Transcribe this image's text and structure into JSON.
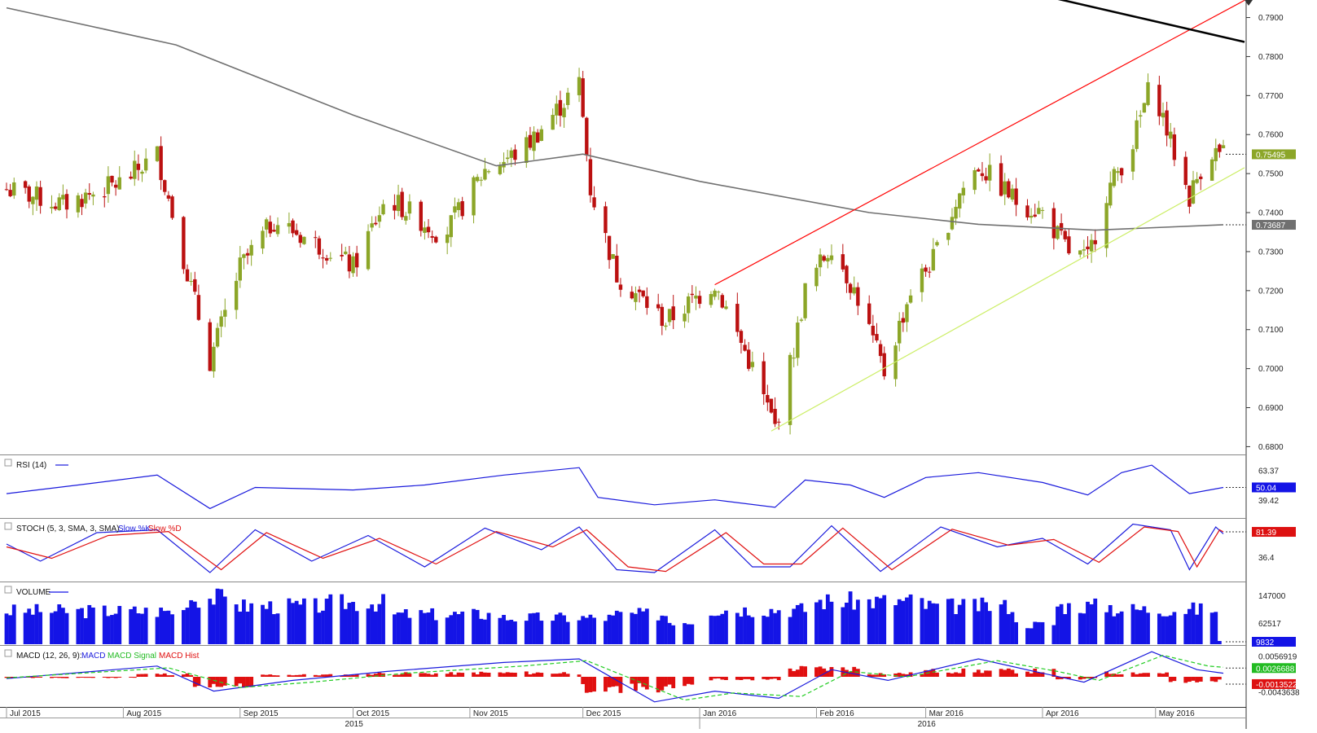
{
  "chart_data": {
    "type": "candlestick",
    "main": {
      "y_ticks": [
        "0.7900",
        "0.7800",
        "0.7700",
        "0.7600",
        "0.7500",
        "0.7400",
        "0.7300",
        "0.7200",
        "0.7100",
        "0.7000",
        "0.6900",
        "0.6800"
      ],
      "ylim": [
        0.678,
        0.7945
      ],
      "last_price_label": "0.75495",
      "last_price": 0.75495,
      "ma_value_label": "0.73687",
      "ma_value": 0.73687,
      "price_points": [
        {
          "date": "2015-07-01",
          "price": 0.746
        },
        {
          "date": "2015-07-16",
          "price": 0.742
        },
        {
          "date": "2015-08-01",
          "price": 0.748
        },
        {
          "date": "2015-08-10",
          "price": 0.755
        },
        {
          "date": "2015-08-24",
          "price": 0.702
        },
        {
          "date": "2015-09-01",
          "price": 0.726
        },
        {
          "date": "2015-09-10",
          "price": 0.738
        },
        {
          "date": "2015-09-25",
          "price": 0.73
        },
        {
          "date": "2015-10-01",
          "price": 0.726
        },
        {
          "date": "2015-10-10",
          "price": 0.744
        },
        {
          "date": "2015-10-25",
          "price": 0.734
        },
        {
          "date": "2015-11-05",
          "price": 0.751
        },
        {
          "date": "2015-11-15",
          "price": 0.756
        },
        {
          "date": "2015-11-30",
          "price": 0.773
        },
        {
          "date": "2015-12-03",
          "price": 0.746
        },
        {
          "date": "2015-12-10",
          "price": 0.724
        },
        {
          "date": "2015-12-23",
          "price": 0.712
        },
        {
          "date": "2016-01-05",
          "price": 0.722
        },
        {
          "date": "2016-01-15",
          "price": 0.7
        },
        {
          "date": "2016-01-21",
          "price": 0.685
        },
        {
          "date": "2016-01-26",
          "price": 0.705
        },
        {
          "date": "2016-01-29",
          "price": 0.72
        },
        {
          "date": "2016-02-05",
          "price": 0.732
        },
        {
          "date": "2016-02-12",
          "price": 0.718
        },
        {
          "date": "2016-02-19",
          "price": 0.699
        },
        {
          "date": "2016-02-26",
          "price": 0.72
        },
        {
          "date": "2016-03-03",
          "price": 0.728
        },
        {
          "date": "2016-03-10",
          "price": 0.745
        },
        {
          "date": "2016-03-15",
          "price": 0.752
        },
        {
          "date": "2016-03-25",
          "price": 0.743
        },
        {
          "date": "2016-04-01",
          "price": 0.74
        },
        {
          "date": "2016-04-08",
          "price": 0.73
        },
        {
          "date": "2016-04-13",
          "price": 0.728
        },
        {
          "date": "2016-04-18",
          "price": 0.745
        },
        {
          "date": "2016-04-25",
          "price": 0.758
        },
        {
          "date": "2016-04-30",
          "price": 0.774
        },
        {
          "date": "2016-05-05",
          "price": 0.758
        },
        {
          "date": "2016-05-10",
          "price": 0.744
        },
        {
          "date": "2016-05-15",
          "price": 0.756
        },
        {
          "date": "2016-05-19",
          "price": 0.7549
        }
      ],
      "moving_average": [
        {
          "date": "2015-07-01",
          "price": 0.7925
        },
        {
          "date": "2015-08-15",
          "price": 0.783
        },
        {
          "date": "2015-10-01",
          "price": 0.765
        },
        {
          "date": "2015-11-08",
          "price": 0.752
        },
        {
          "date": "2015-12-01",
          "price": 0.755
        },
        {
          "date": "2016-01-01",
          "price": 0.748
        },
        {
          "date": "2016-02-15",
          "price": 0.74
        },
        {
          "date": "2016-03-15",
          "price": 0.737
        },
        {
          "date": "2016-04-15",
          "price": 0.7355
        },
        {
          "date": "2016-05-19",
          "price": 0.7369
        }
      ],
      "trendlines": [
        {
          "color": "#ff0000",
          "from": {
            "date": "2016-01-05",
            "price": 0.7215
          },
          "to": {
            "date": "2016-05-19",
            "price": 0.7915
          }
        },
        {
          "color": "#ccee66",
          "from": {
            "date": "2016-01-20",
            "price": 0.684
          },
          "to": {
            "date": "2016-05-19",
            "price": 0.7485
          }
        },
        {
          "color": "#000000",
          "from": {
            "date": "2016-03-08",
            "price": 0.801
          },
          "to": {
            "date": "2016-05-19",
            "price": 0.785
          }
        }
      ]
    },
    "x_axis": {
      "months": [
        {
          "label": "Jul 2015",
          "date": "2015-07-01"
        },
        {
          "label": "Aug 2015",
          "date": "2015-08-01"
        },
        {
          "label": "Sep 2015",
          "date": "2015-09-01"
        },
        {
          "label": "Oct 2015",
          "date": "2015-10-01"
        },
        {
          "label": "Nov 2015",
          "date": "2015-11-01"
        },
        {
          "label": "Dec 2015",
          "date": "2015-12-01"
        },
        {
          "label": "Jan 2016",
          "date": "2016-01-01"
        },
        {
          "label": "Feb 2016",
          "date": "2016-02-01"
        },
        {
          "label": "Mar 2016",
          "date": "2016-03-01"
        },
        {
          "label": "Apr 2016",
          "date": "2016-04-01"
        },
        {
          "label": "May 2016",
          "date": "2016-05-01"
        }
      ],
      "years": [
        {
          "label": "2015",
          "date": "2015-10-01"
        },
        {
          "label": "2016",
          "date": "2016-03-01"
        }
      ]
    },
    "rsi": {
      "title": "RSI (14)",
      "ticks": [
        "63.37",
        "39.42"
      ],
      "tick_values": [
        63.37,
        39.42
      ],
      "last_label": "50.04",
      "range": [
        28,
        74
      ],
      "points": [
        {
          "date": "2015-07-01",
          "v": 45
        },
        {
          "date": "2015-07-20",
          "v": 52
        },
        {
          "date": "2015-08-10",
          "v": 60
        },
        {
          "date": "2015-08-24",
          "v": 33
        },
        {
          "date": "2015-09-05",
          "v": 50
        },
        {
          "date": "2015-10-01",
          "v": 48
        },
        {
          "date": "2015-10-20",
          "v": 52
        },
        {
          "date": "2015-11-10",
          "v": 60
        },
        {
          "date": "2015-11-30",
          "v": 66
        },
        {
          "date": "2015-12-05",
          "v": 42
        },
        {
          "date": "2015-12-20",
          "v": 36
        },
        {
          "date": "2016-01-05",
          "v": 40
        },
        {
          "date": "2016-01-21",
          "v": 34
        },
        {
          "date": "2016-01-29",
          "v": 56
        },
        {
          "date": "2016-02-10",
          "v": 52
        },
        {
          "date": "2016-02-19",
          "v": 42
        },
        {
          "date": "2016-03-01",
          "v": 58
        },
        {
          "date": "2016-03-15",
          "v": 62
        },
        {
          "date": "2016-04-01",
          "v": 54
        },
        {
          "date": "2016-04-13",
          "v": 44
        },
        {
          "date": "2016-04-22",
          "v": 62
        },
        {
          "date": "2016-04-30",
          "v": 68
        },
        {
          "date": "2016-05-10",
          "v": 45
        },
        {
          "date": "2016-05-19",
          "v": 50.04
        }
      ]
    },
    "stoch": {
      "title": "STOCH (5, 3, SMA, 3, SMA)",
      "legend": [
        "Slow %K",
        "Slow %D"
      ],
      "tick_label": "36.4",
      "tick_value": 36.4,
      "last_label": "81.39",
      "range": [
        0,
        100
      ],
      "k_points": [
        {
          "date": "2015-07-01",
          "v": 60
        },
        {
          "date": "2015-07-10",
          "v": 30
        },
        {
          "date": "2015-07-25",
          "v": 80
        },
        {
          "date": "2015-08-10",
          "v": 85
        },
        {
          "date": "2015-08-24",
          "v": 10
        },
        {
          "date": "2015-09-05",
          "v": 85
        },
        {
          "date": "2015-09-20",
          "v": 30
        },
        {
          "date": "2015-10-05",
          "v": 75
        },
        {
          "date": "2015-10-20",
          "v": 20
        },
        {
          "date": "2015-11-05",
          "v": 88
        },
        {
          "date": "2015-11-20",
          "v": 50
        },
        {
          "date": "2015-11-30",
          "v": 90
        },
        {
          "date": "2015-12-10",
          "v": 15
        },
        {
          "date": "2015-12-20",
          "v": 10
        },
        {
          "date": "2016-01-05",
          "v": 85
        },
        {
          "date": "2016-01-15",
          "v": 20
        },
        {
          "date": "2016-01-25",
          "v": 20
        },
        {
          "date": "2016-02-05",
          "v": 92
        },
        {
          "date": "2016-02-18",
          "v": 12
        },
        {
          "date": "2016-03-05",
          "v": 90
        },
        {
          "date": "2016-03-20",
          "v": 55
        },
        {
          "date": "2016-04-01",
          "v": 70
        },
        {
          "date": "2016-04-13",
          "v": 25
        },
        {
          "date": "2016-04-25",
          "v": 95
        },
        {
          "date": "2016-05-05",
          "v": 85
        },
        {
          "date": "2016-05-10",
          "v": 15
        },
        {
          "date": "2016-05-17",
          "v": 90
        },
        {
          "date": "2016-05-19",
          "v": 78
        }
      ],
      "d_points": [
        {
          "date": "2015-07-01",
          "v": 55
        },
        {
          "date": "2015-07-13",
          "v": 35
        },
        {
          "date": "2015-07-28",
          "v": 75
        },
        {
          "date": "2015-08-13",
          "v": 82
        },
        {
          "date": "2015-08-27",
          "v": 15
        },
        {
          "date": "2015-09-08",
          "v": 80
        },
        {
          "date": "2015-09-23",
          "v": 35
        },
        {
          "date": "2015-10-08",
          "v": 70
        },
        {
          "date": "2015-10-23",
          "v": 25
        },
        {
          "date": "2015-11-08",
          "v": 82
        },
        {
          "date": "2015-11-23",
          "v": 55
        },
        {
          "date": "2015-12-02",
          "v": 85
        },
        {
          "date": "2015-12-13",
          "v": 20
        },
        {
          "date": "2015-12-23",
          "v": 12
        },
        {
          "date": "2016-01-08",
          "v": 80
        },
        {
          "date": "2016-01-18",
          "v": 25
        },
        {
          "date": "2016-01-28",
          "v": 25
        },
        {
          "date": "2016-02-08",
          "v": 88
        },
        {
          "date": "2016-02-21",
          "v": 15
        },
        {
          "date": "2016-03-08",
          "v": 86
        },
        {
          "date": "2016-03-23",
          "v": 58
        },
        {
          "date": "2016-04-04",
          "v": 68
        },
        {
          "date": "2016-04-16",
          "v": 28
        },
        {
          "date": "2016-04-28",
          "v": 90
        },
        {
          "date": "2016-05-07",
          "v": 82
        },
        {
          "date": "2016-05-12",
          "v": 20
        },
        {
          "date": "2016-05-18",
          "v": 85
        },
        {
          "date": "2016-05-19",
          "v": 81.39
        }
      ]
    },
    "volume": {
      "title": "VOLUME",
      "ticks": [
        "147000",
        "62517"
      ],
      "tick_values": [
        147000,
        62517
      ],
      "last_label": "9832",
      "range": [
        0,
        175000
      ],
      "segments": [
        {
          "from": "2015-07-01",
          "to": "2015-08-18",
          "v": 100000
        },
        {
          "from": "2015-08-18",
          "to": "2015-09-01",
          "v": 140000
        },
        {
          "from": "2015-09-01",
          "to": "2015-09-25",
          "v": 115000
        },
        {
          "from": "2015-09-25",
          "to": "2015-10-10",
          "v": 125000
        },
        {
          "from": "2015-10-10",
          "to": "2015-11-10",
          "v": 90000
        },
        {
          "from": "2015-11-10",
          "to": "2015-12-10",
          "v": 80000
        },
        {
          "from": "2015-12-10",
          "to": "2015-12-24",
          "v": 90000
        },
        {
          "from": "2015-12-24",
          "to": "2015-12-31",
          "v": 70000
        },
        {
          "from": "2016-01-04",
          "to": "2016-01-31",
          "v": 105000
        },
        {
          "from": "2016-01-31",
          "to": "2016-03-01",
          "v": 130000
        },
        {
          "from": "2016-03-01",
          "to": "2016-03-25",
          "v": 115000
        },
        {
          "from": "2016-03-25",
          "to": "2016-04-05",
          "v": 60000
        },
        {
          "from": "2016-04-05",
          "to": "2016-04-20",
          "v": 115000
        },
        {
          "from": "2016-04-20",
          "to": "2016-05-18",
          "v": 105000
        },
        {
          "from": "2016-05-18",
          "to": "2016-05-19",
          "v": 9832
        }
      ]
    },
    "macd": {
      "title": "MACD (12, 26, 9):",
      "legend": [
        "MACD",
        "MACD Signal",
        "MACD Hist"
      ],
      "ticks": [
        "0.0056919",
        "-0.0043638"
      ],
      "tick_values": [
        0.0056919,
        -0.0043638
      ],
      "macd_label": "0.0026688",
      "hist_label": "-0.0013522",
      "range": [
        -0.0075,
        0.0075
      ],
      "macd_points": [
        {
          "date": "2015-07-01",
          "v": -0.0005
        },
        {
          "date": "2015-08-10",
          "v": 0.003
        },
        {
          "date": "2015-08-25",
          "v": -0.004
        },
        {
          "date": "2015-09-15",
          "v": -0.001
        },
        {
          "date": "2015-10-10",
          "v": 0.0015
        },
        {
          "date": "2015-11-10",
          "v": 0.004
        },
        {
          "date": "2015-11-30",
          "v": 0.005
        },
        {
          "date": "2015-12-20",
          "v": -0.007
        },
        {
          "date": "2016-01-05",
          "v": -0.004
        },
        {
          "date": "2016-01-22",
          "v": -0.006
        },
        {
          "date": "2016-02-05",
          "v": 0.002
        },
        {
          "date": "2016-02-20",
          "v": -0.001
        },
        {
          "date": "2016-03-15",
          "v": 0.005
        },
        {
          "date": "2016-04-01",
          "v": 0.001
        },
        {
          "date": "2016-04-12",
          "v": -0.0015
        },
        {
          "date": "2016-04-30",
          "v": 0.007
        },
        {
          "date": "2016-05-12",
          "v": 0.002
        },
        {
          "date": "2016-05-19",
          "v": 0.001
        }
      ],
      "signal_points": [
        {
          "date": "2015-07-01",
          "v": -0.0003
        },
        {
          "date": "2015-08-13",
          "v": 0.0025
        },
        {
          "date": "2015-09-01",
          "v": -0.003
        },
        {
          "date": "2015-09-20",
          "v": -0.0015
        },
        {
          "date": "2015-10-15",
          "v": 0.001
        },
        {
          "date": "2015-11-15",
          "v": 0.003
        },
        {
          "date": "2015-12-02",
          "v": 0.0045
        },
        {
          "date": "2015-12-28",
          "v": -0.0065
        },
        {
          "date": "2016-01-10",
          "v": -0.0045
        },
        {
          "date": "2016-01-28",
          "v": -0.0055
        },
        {
          "date": "2016-02-10",
          "v": 0.0015
        },
        {
          "date": "2016-02-25",
          "v": 0.0
        },
        {
          "date": "2016-03-20",
          "v": 0.0045
        },
        {
          "date": "2016-04-05",
          "v": 0.0015
        },
        {
          "date": "2016-04-16",
          "v": -0.001
        },
        {
          "date": "2016-05-03",
          "v": 0.006
        },
        {
          "date": "2016-05-15",
          "v": 0.003
        },
        {
          "date": "2016-05-19",
          "v": 0.0026688
        }
      ],
      "hist_segments": [
        {
          "from": "2015-07-01",
          "to": "2015-08-05",
          "v": -0.0003
        },
        {
          "from": "2015-08-05",
          "to": "2015-08-20",
          "v": 0.0008
        },
        {
          "from": "2015-08-20",
          "to": "2015-09-05",
          "v": -0.0025
        },
        {
          "from": "2015-09-05",
          "to": "2015-10-05",
          "v": 0.0006
        },
        {
          "from": "2015-10-05",
          "to": "2015-11-01",
          "v": 0.001
        },
        {
          "from": "2015-11-01",
          "to": "2015-12-01",
          "v": 0.0012
        },
        {
          "from": "2015-12-01",
          "to": "2015-12-31",
          "v": -0.0035
        },
        {
          "from": "2016-01-04",
          "to": "2016-01-25",
          "v": -0.0008
        },
        {
          "from": "2016-01-25",
          "to": "2016-02-15",
          "v": 0.0025
        },
        {
          "from": "2016-02-15",
          "to": "2016-03-01",
          "v": 0.001
        },
        {
          "from": "2016-03-01",
          "to": "2016-04-05",
          "v": 0.0018
        },
        {
          "from": "2016-04-05",
          "to": "2016-04-18",
          "v": -0.0006
        },
        {
          "from": "2016-04-18",
          "to": "2016-05-05",
          "v": 0.0012
        },
        {
          "from": "2016-05-05",
          "to": "2016-05-19",
          "v": -0.0013522
        }
      ]
    },
    "colors": {
      "bull": "#8ca628",
      "bear": "#bb1111",
      "ma": "#707070",
      "rsi": "#1a1adc",
      "stoch_k": "#1a1adc",
      "stoch_d": "#e01010",
      "volume": "#1414e6",
      "macd": "#1a1adc",
      "signal": "#22cc22",
      "hist": "#e01010",
      "last_price_bg": "#8ca628",
      "ma_bg": "#707070",
      "rsi_bg": "#1414e6",
      "stoch_bg": "#dd1111",
      "volume_bg": "#1414e6",
      "macd_bg": "#22bb22",
      "hist_bg": "#dd1111"
    }
  }
}
